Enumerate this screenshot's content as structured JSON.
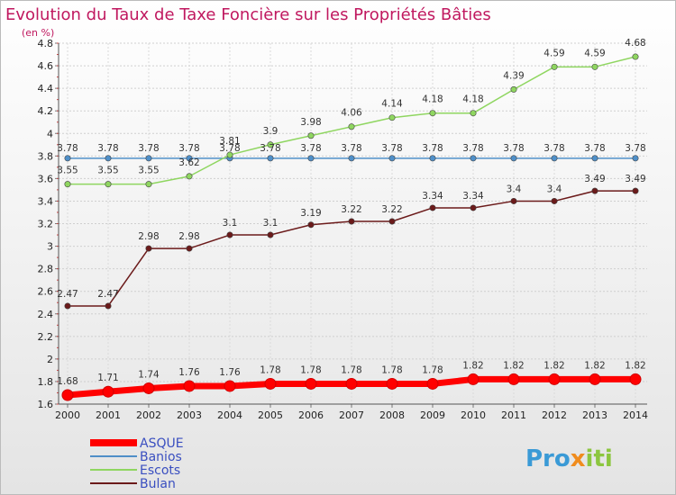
{
  "chart_data": {
    "type": "line",
    "title": "Evolution du Taux de Taxe Foncière sur les Propriétés Bâties",
    "subtitle": "(en %)",
    "x": [
      "2000",
      "2001",
      "2002",
      "2003",
      "2004",
      "2005",
      "2006",
      "2007",
      "2008",
      "2009",
      "2010",
      "2011",
      "2012",
      "2013",
      "2014"
    ],
    "ylim": [
      1.6,
      4.8
    ],
    "yticks": [
      "1.6",
      "1.8",
      "2",
      "2.2",
      "2.4",
      "2.6",
      "2.8",
      "3",
      "3.2",
      "3.4",
      "3.6",
      "3.8",
      "4",
      "4.2",
      "4.4",
      "4.6",
      "4.8"
    ],
    "grid": true,
    "legend_position": "bottom-left",
    "series": [
      {
        "name": "ASQUE",
        "color": "#ff0000",
        "labels": [
          "1.68",
          "1.71",
          "1.74",
          "1.76",
          "1.76",
          "1.78",
          "1.78",
          "1.78",
          "1.78",
          "1.78",
          "1.82",
          "1.82",
          "1.82",
          "1.82",
          "1.82"
        ],
        "values": [
          1.68,
          1.71,
          1.74,
          1.76,
          1.76,
          1.78,
          1.78,
          1.78,
          1.78,
          1.78,
          1.82,
          1.82,
          1.82,
          1.82,
          1.82
        ]
      },
      {
        "name": "Banios",
        "color": "#4f8fc8",
        "labels": [
          "3.78",
          "3.78",
          "3.78",
          "3.78",
          "3.78",
          "3.78",
          "3.78",
          "3.78",
          "3.78",
          "3.78",
          "3.78",
          "3.78",
          "3.78",
          "3.78",
          "3.78"
        ],
        "values": [
          3.78,
          3.78,
          3.78,
          3.78,
          3.78,
          3.78,
          3.78,
          3.78,
          3.78,
          3.78,
          3.78,
          3.78,
          3.78,
          3.78,
          3.78
        ]
      },
      {
        "name": "Escots",
        "color": "#8fd660",
        "labels": [
          "3.55",
          "3.55",
          "3.55",
          "3.62",
          "3.81",
          "3.9",
          "3.98",
          "4.06",
          "4.14",
          "4.18",
          "4.18",
          "4.39",
          "4.59",
          "4.59",
          "4.68"
        ],
        "values": [
          3.55,
          3.55,
          3.55,
          3.62,
          3.81,
          3.9,
          3.98,
          4.06,
          4.14,
          4.18,
          4.18,
          4.39,
          4.59,
          4.59,
          4.68
        ]
      },
      {
        "name": "Bulan",
        "color": "#6b1a1a",
        "labels": [
          "2.47",
          "2.47",
          "2.98",
          "2.98",
          "3.1",
          "3.1",
          "3.19",
          "3.22",
          "3.22",
          "3.34",
          "3.34",
          "3.4",
          "3.4",
          "3.49",
          "3.49"
        ],
        "values": [
          2.47,
          2.47,
          2.98,
          2.98,
          3.1,
          3.1,
          3.19,
          3.22,
          3.22,
          3.34,
          3.34,
          3.4,
          3.4,
          3.49,
          3.49
        ]
      }
    ]
  },
  "logo": {
    "part1": "Pro",
    "part2": "x",
    "part3": "iti"
  }
}
